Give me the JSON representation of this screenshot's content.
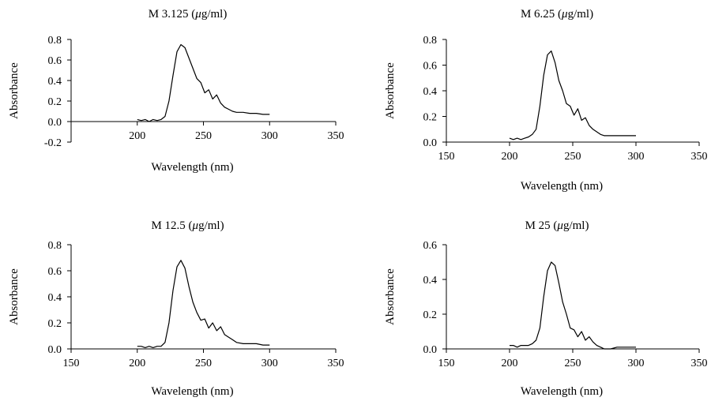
{
  "chart_data": [
    {
      "type": "line",
      "title": "M 3.125 (μg/ml)",
      "xlabel": "Wavelength (nm)",
      "ylabel": "Absorbance",
      "xlim": [
        150,
        350
      ],
      "ylim": [
        -0.2,
        0.8
      ],
      "xticks": [
        "200",
        "250",
        "300",
        "350"
      ],
      "yticks": [
        "-0.2",
        "0.0",
        "0.2",
        "0.4",
        "0.6",
        "0.8"
      ],
      "x_axis_at_y": 0,
      "series": [
        {
          "x": [
            200,
            203,
            206,
            209,
            212,
            215,
            218,
            221,
            224,
            227,
            230,
            233,
            236,
            239,
            242,
            245,
            248,
            251,
            254,
            257,
            260,
            263,
            266,
            269,
            272,
            275,
            280,
            285,
            290,
            295,
            300
          ],
          "y": [
            0.02,
            0.01,
            0.02,
            0.0,
            0.02,
            0.01,
            0.02,
            0.05,
            0.2,
            0.45,
            0.68,
            0.75,
            0.72,
            0.62,
            0.52,
            0.42,
            0.38,
            0.28,
            0.31,
            0.22,
            0.26,
            0.18,
            0.14,
            0.12,
            0.1,
            0.09,
            0.09,
            0.08,
            0.08,
            0.07,
            0.07
          ]
        }
      ]
    },
    {
      "type": "line",
      "title": "M 6.25 (μg/ml)",
      "xlabel": "Wavelength (nm)",
      "ylabel": "Absorbance",
      "xlim": [
        150,
        350
      ],
      "ylim": [
        0,
        0.8
      ],
      "xticks": [
        "150",
        "200",
        "250",
        "300",
        "350"
      ],
      "yticks": [
        "0.0",
        "0.2",
        "0.4",
        "0.6",
        "0.8"
      ],
      "x_axis_at_y": 0,
      "series": [
        {
          "x": [
            200,
            203,
            206,
            209,
            212,
            215,
            218,
            221,
            224,
            227,
            230,
            233,
            236,
            239,
            242,
            245,
            248,
            251,
            254,
            257,
            260,
            263,
            266,
            269,
            272,
            275,
            280,
            285,
            290,
            295,
            300
          ],
          "y": [
            0.03,
            0.02,
            0.03,
            0.02,
            0.03,
            0.04,
            0.06,
            0.1,
            0.28,
            0.52,
            0.68,
            0.71,
            0.62,
            0.48,
            0.4,
            0.3,
            0.28,
            0.21,
            0.26,
            0.17,
            0.19,
            0.13,
            0.1,
            0.08,
            0.06,
            0.05,
            0.05,
            0.05,
            0.05,
            0.05,
            0.05
          ]
        }
      ]
    },
    {
      "type": "line",
      "title": "M 12.5 (μg/ml)",
      "xlabel": "Wavelength (nm)",
      "ylabel": "Absorbance",
      "xlim": [
        150,
        350
      ],
      "ylim": [
        0,
        0.8
      ],
      "xticks": [
        "150",
        "200",
        "250",
        "300",
        "350"
      ],
      "yticks": [
        "0.0",
        "0.2",
        "0.4",
        "0.6",
        "0.8"
      ],
      "x_axis_at_y": 0,
      "series": [
        {
          "x": [
            200,
            203,
            206,
            209,
            212,
            215,
            218,
            221,
            224,
            227,
            230,
            233,
            236,
            239,
            242,
            245,
            248,
            251,
            254,
            257,
            260,
            263,
            266,
            269,
            272,
            275,
            280,
            285,
            290,
            295,
            300
          ],
          "y": [
            0.02,
            0.02,
            0.01,
            0.02,
            0.01,
            0.02,
            0.02,
            0.05,
            0.2,
            0.45,
            0.63,
            0.68,
            0.62,
            0.48,
            0.36,
            0.28,
            0.22,
            0.23,
            0.16,
            0.2,
            0.14,
            0.17,
            0.11,
            0.09,
            0.07,
            0.05,
            0.04,
            0.04,
            0.04,
            0.03,
            0.03
          ]
        }
      ]
    },
    {
      "type": "line",
      "title": "M 25 (μg/ml)",
      "xlabel": "Wavelength (nm)",
      "ylabel": "Absorbance",
      "xlim": [
        150,
        350
      ],
      "ylim": [
        0,
        0.6
      ],
      "xticks": [
        "150",
        "200",
        "250",
        "300",
        "350"
      ],
      "yticks": [
        "0.0",
        "0.2",
        "0.4",
        "0.6"
      ],
      "x_axis_at_y": 0,
      "series": [
        {
          "x": [
            200,
            203,
            206,
            209,
            212,
            215,
            218,
            221,
            224,
            227,
            230,
            233,
            236,
            239,
            242,
            245,
            248,
            251,
            254,
            257,
            260,
            263,
            266,
            269,
            272,
            275,
            280,
            285,
            290,
            295,
            300
          ],
          "y": [
            0.02,
            0.02,
            0.01,
            0.02,
            0.02,
            0.02,
            0.03,
            0.05,
            0.12,
            0.3,
            0.45,
            0.5,
            0.48,
            0.38,
            0.27,
            0.2,
            0.12,
            0.11,
            0.07,
            0.1,
            0.05,
            0.07,
            0.04,
            0.02,
            0.01,
            0.0,
            0.0,
            0.01,
            0.01,
            0.01,
            0.01
          ]
        }
      ]
    }
  ]
}
